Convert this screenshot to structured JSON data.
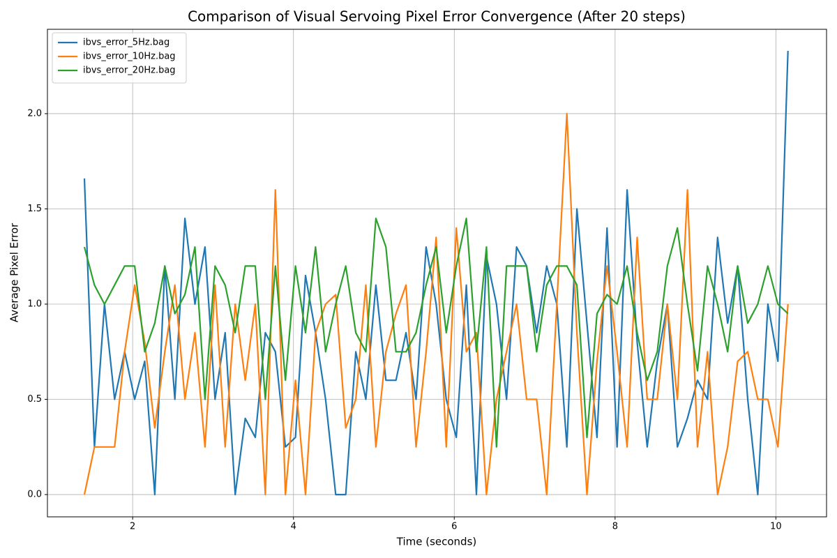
{
  "chart_data": {
    "type": "line",
    "title": "Comparison of Visual Servoing Pixel Error Convergence (After 20 steps)",
    "x_label": "Time (seconds)",
    "y_label": "Average Pixel Error",
    "x": [
      1.4,
      1.525,
      1.65,
      1.775,
      1.9,
      2.025,
      2.15,
      2.275,
      2.4,
      2.525,
      2.65,
      2.775,
      2.9,
      3.025,
      3.15,
      3.275,
      3.4,
      3.525,
      3.65,
      3.775,
      3.9,
      4.025,
      4.15,
      4.275,
      4.4,
      4.525,
      4.65,
      4.775,
      4.9,
      5.025,
      5.15,
      5.275,
      5.4,
      5.525,
      5.65,
      5.775,
      5.9,
      6.025,
      6.15,
      6.275,
      6.4,
      6.525,
      6.65,
      6.775,
      6.9,
      7.025,
      7.15,
      7.275,
      7.4,
      7.525,
      7.65,
      7.775,
      7.9,
      8.025,
      8.15,
      8.275,
      8.4,
      8.525,
      8.65,
      8.775,
      8.9,
      9.025,
      9.15,
      9.275,
      9.4,
      9.525,
      9.65,
      9.775,
      9.9,
      10.025,
      10.15
    ],
    "series": [
      {
        "name": "ibvs_error_5Hz.bag",
        "color": "#1f77b4",
        "values": [
          1.66,
          0.25,
          1.0,
          0.5,
          0.75,
          0.5,
          0.7,
          0.0,
          1.2,
          0.5,
          1.45,
          1.0,
          1.3,
          0.5,
          0.85,
          0.0,
          0.4,
          0.3,
          0.85,
          0.75,
          0.25,
          0.3,
          1.15,
          0.85,
          0.5,
          0.0,
          0.0,
          0.75,
          0.5,
          1.1,
          0.6,
          0.6,
          0.85,
          0.5,
          1.3,
          1.0,
          0.5,
          0.3,
          1.1,
          0.0,
          1.25,
          1.0,
          0.5,
          1.3,
          1.2,
          0.85,
          1.2,
          1.0,
          0.25,
          1.5,
          0.9,
          0.3,
          1.4,
          0.25,
          1.6,
          0.8,
          0.25,
          0.7,
          1.0,
          0.25,
          0.4,
          0.6,
          0.5,
          1.35,
          0.9,
          1.2,
          0.5,
          0.0,
          1.0,
          0.7,
          2.33
        ]
      },
      {
        "name": "ibvs_error_10Hz.bag",
        "color": "#ff7f0e",
        "values": [
          0.0,
          0.25,
          0.25,
          0.25,
          0.75,
          1.1,
          0.8,
          0.35,
          0.75,
          1.1,
          0.5,
          0.85,
          0.25,
          1.1,
          0.25,
          1.0,
          0.6,
          1.0,
          0.0,
          1.6,
          0.0,
          0.6,
          0.0,
          0.85,
          1.0,
          1.05,
          0.35,
          0.5,
          1.1,
          0.25,
          0.75,
          0.95,
          1.1,
          0.25,
          0.75,
          1.35,
          0.25,
          1.4,
          0.75,
          0.85,
          0.0,
          0.5,
          0.75,
          1.0,
          0.5,
          0.5,
          0.0,
          1.0,
          2.0,
          0.85,
          0.0,
          0.7,
          1.2,
          0.75,
          0.25,
          1.35,
          0.5,
          0.5,
          1.0,
          0.5,
          1.6,
          0.25,
          0.75,
          0.0,
          0.25,
          0.7,
          0.75,
          0.5,
          0.5,
          0.25,
          1.0
        ]
      },
      {
        "name": "ibvs_error_20Hz.bag",
        "color": "#2ca02c",
        "values": [
          1.3,
          1.1,
          1.0,
          1.1,
          1.2,
          1.2,
          0.75,
          0.9,
          1.2,
          0.95,
          1.05,
          1.3,
          0.5,
          1.2,
          1.1,
          0.85,
          1.2,
          1.2,
          0.5,
          1.2,
          0.6,
          1.2,
          0.85,
          1.3,
          0.75,
          1.0,
          1.2,
          0.85,
          0.75,
          1.45,
          1.3,
          0.75,
          0.75,
          0.85,
          1.1,
          1.3,
          0.85,
          1.2,
          1.45,
          0.75,
          1.3,
          0.25,
          1.2,
          1.2,
          1.2,
          0.75,
          1.1,
          1.2,
          1.2,
          1.1,
          0.3,
          0.95,
          1.05,
          1.0,
          1.2,
          0.85,
          0.6,
          0.75,
          1.2,
          1.4,
          1.0,
          0.65,
          1.2,
          1.0,
          0.75,
          1.2,
          0.9,
          1.0,
          1.2,
          1.0,
          0.95
        ]
      }
    ],
    "xlim": [
      0.94,
      10.63
    ],
    "xticks": [
      2,
      4,
      6,
      8,
      10
    ],
    "ylim": [
      -0.117,
      2.443
    ],
    "yticks": [
      {
        "value": 0,
        "label": "0.0"
      },
      0.5,
      {
        "value": 1,
        "label": "1.0"
      },
      1.5,
      {
        "value": 2,
        "label": "2.0"
      }
    ],
    "grid": true,
    "legend": "upper left"
  }
}
